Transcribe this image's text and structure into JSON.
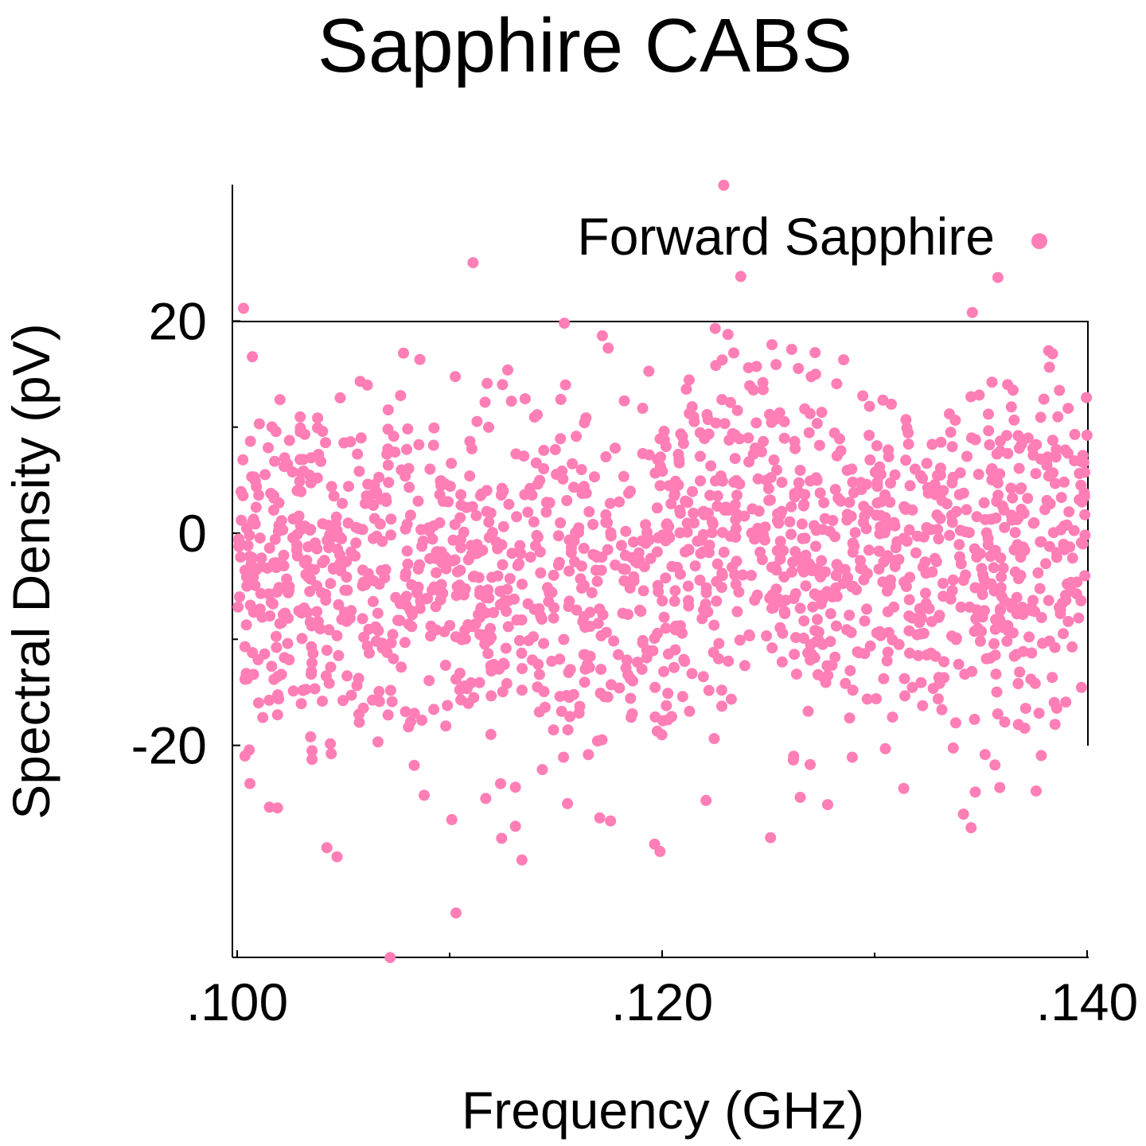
{
  "chart_data": {
    "type": "scatter",
    "title": "Sapphire CABS",
    "xlabel": "Frequency (GHz)",
    "ylabel": "Spectral Density (pV)",
    "xlim": [
      0.1,
      0.14
    ],
    "ylim": [
      -40,
      33
    ],
    "x_ticks": [
      {
        "value": 0.1,
        "label": ".100"
      },
      {
        "value": 0.12,
        "label": ".120"
      },
      {
        "value": 0.14,
        "label": ".140"
      }
    ],
    "x_minor_ticks": [
      0.11,
      0.13
    ],
    "y_ticks": [
      {
        "value": 20,
        "label": "20"
      },
      {
        "value": 0,
        "label": "0"
      },
      {
        "value": -20,
        "label": "-20"
      }
    ],
    "y_minor_ticks": [
      10,
      -10
    ],
    "grid": false,
    "legend_position": "top-right",
    "series": [
      {
        "name": "Forward Sapphire",
        "color": "#ff7eb6",
        "generator": {
          "kind": "noisy-band",
          "count": 1600,
          "seed": 20240611,
          "x_range": [
            0.1,
            0.14
          ],
          "center_trend": [
            [
              0.1,
              -4
            ],
            [
              0.105,
              -5
            ],
            [
              0.11,
              -4
            ],
            [
              0.115,
              -5
            ],
            [
              0.118,
              -6
            ],
            [
              0.12,
              -3
            ],
            [
              0.123,
              1
            ],
            [
              0.125,
              2
            ],
            [
              0.127,
              -3
            ],
            [
              0.13,
              -3
            ],
            [
              0.135,
              -3
            ],
            [
              0.14,
              -1
            ]
          ],
          "spread_sd": 8
        },
        "points": [
          {
            "x": 0.1003,
            "y": 21.2
          },
          {
            "x": 0.1111,
            "y": 25.5
          },
          {
            "x": 0.1229,
            "y": 32.8
          },
          {
            "x": 0.1237,
            "y": 24.2
          },
          {
            "x": 0.1358,
            "y": 24.1
          },
          {
            "x": 0.1346,
            "y": 20.8
          },
          {
            "x": 0.1154,
            "y": 19.8
          },
          {
            "x": 0.1225,
            "y": 19.3
          },
          {
            "x": 0.1072,
            "y": -40.0
          },
          {
            "x": 0.1103,
            "y": -35.8
          },
          {
            "x": 0.1134,
            "y": -30.8
          },
          {
            "x": 0.1047,
            "y": -30.5
          },
          {
            "x": 0.1199,
            "y": -30.0
          },
          {
            "x": 0.1251,
            "y": -28.7
          },
          {
            "x": 0.1019,
            "y": -25.9
          },
          {
            "x": 0.1101,
            "y": -27.0
          },
          {
            "x": 0.1117,
            "y": -25.0
          },
          {
            "x": 0.1376,
            "y": -24.3
          },
          {
            "x": 0.1006,
            "y": -23.6
          },
          {
            "x": 0.1265,
            "y": -24.9
          }
        ]
      }
    ]
  }
}
